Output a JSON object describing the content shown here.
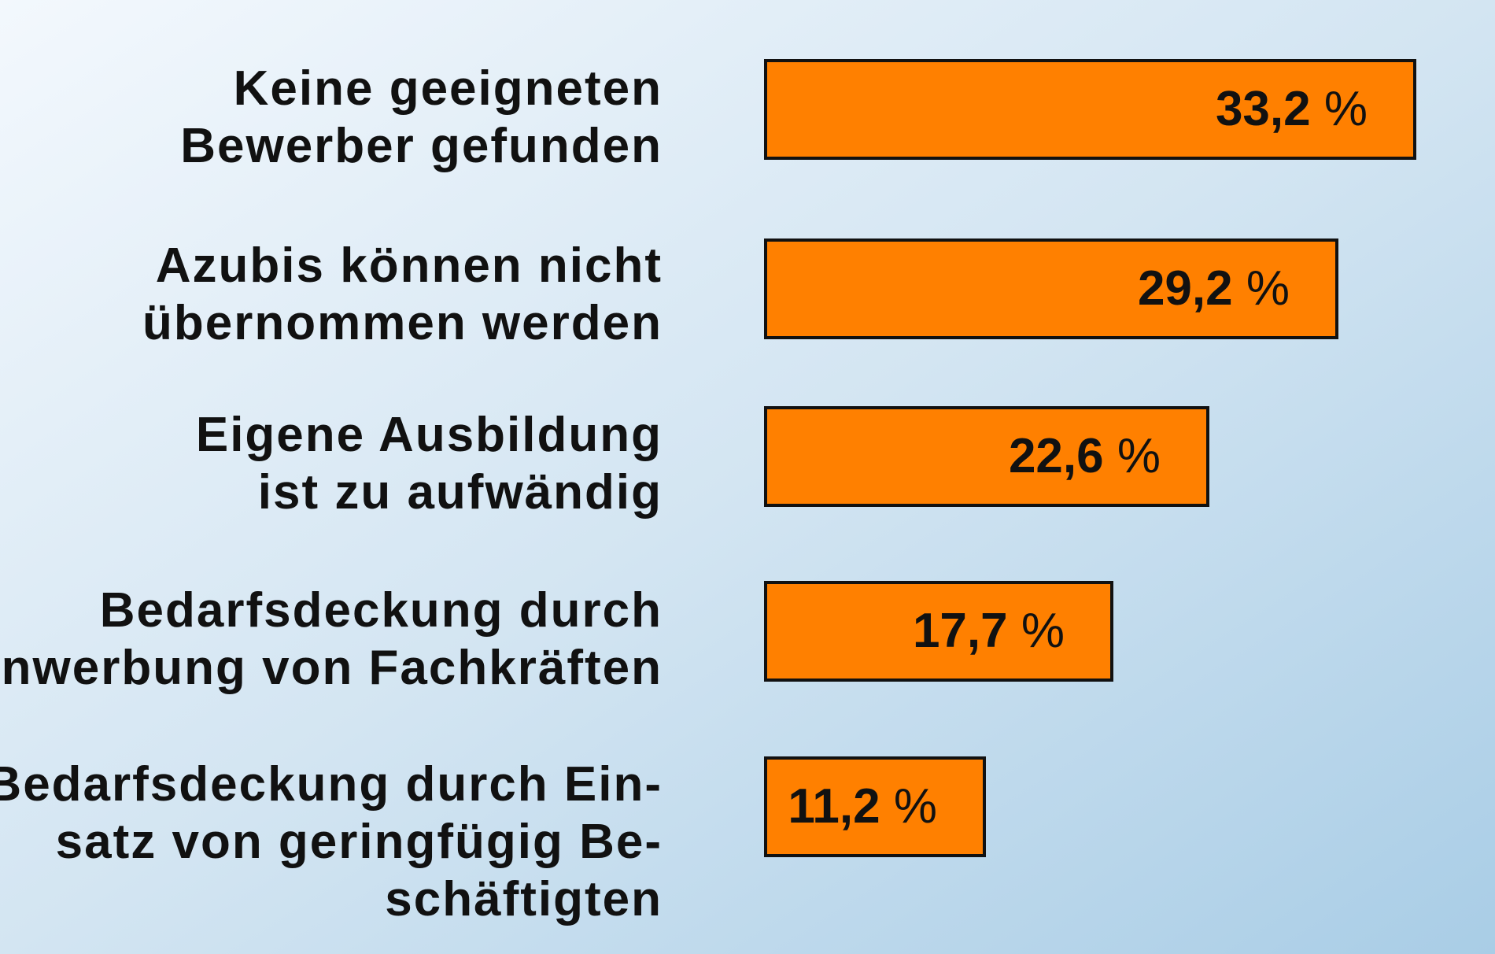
{
  "chart_data": {
    "type": "bar",
    "orientation": "horizontal",
    "categories": [
      [
        "Keine geeigneten",
        "Bewerber gefunden"
      ],
      [
        "Azubis können nicht",
        "übernommen werden"
      ],
      [
        "Eigene Ausbildung",
        "ist zu aufwändig"
      ],
      [
        "Bedarfsdeckung durch",
        "Anwerbung von Fachkräften"
      ],
      [
        "Bedarfsdeckung durch Ein-",
        "satz von geringfügig Be-",
        "schäftigten"
      ]
    ],
    "values": [
      33.2,
      29.2,
      22.6,
      17.7,
      11.2
    ],
    "value_labels": [
      "33,2",
      "29,2",
      "22,6",
      "17,7",
      "11,2"
    ],
    "unit": "%",
    "xlim": [
      0,
      33.2
    ],
    "grid": false,
    "legend": "none",
    "colors": {
      "bar": "#ff8000",
      "bar_border": "#111111",
      "text": "#111111",
      "background_light": "#f3f8fd",
      "background_dark": "#a9cde6"
    }
  }
}
